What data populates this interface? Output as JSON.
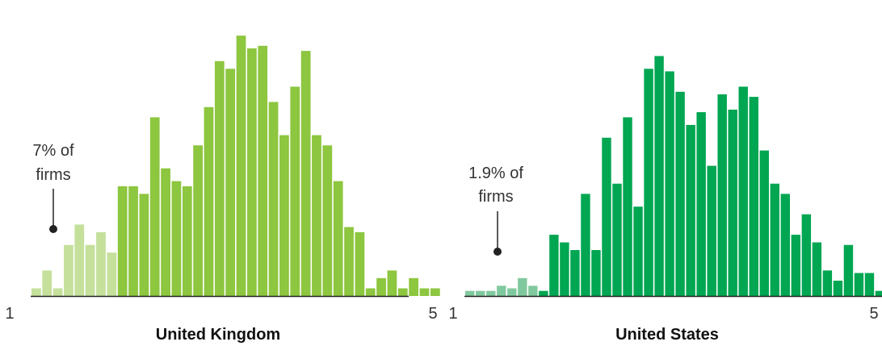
{
  "chart_data": [
    {
      "type": "bar",
      "title": "United Kingdom",
      "x_tick_labels": [
        "1",
        "5"
      ],
      "values": [
        3,
        10,
        3,
        20,
        28,
        20,
        25,
        17,
        43,
        43,
        40,
        70,
        50,
        45,
        43,
        59,
        74,
        92,
        89,
        102,
        97,
        98,
        76,
        63,
        82,
        96,
        63,
        59,
        45,
        27,
        25,
        3,
        7,
        10,
        3,
        7,
        3,
        3
      ],
      "highlight_count": 8,
      "ylim": [
        0,
        115
      ],
      "annotation": {
        "lines": [
          "7% of",
          "firms"
        ]
      },
      "colors": {
        "highlight": "#c5e09b",
        "bar": "#8dc63f",
        "axis": "#222222"
      }
    },
    {
      "type": "bar",
      "title": "United States",
      "x_tick_labels": [
        "1",
        "5"
      ],
      "values": [
        2,
        2,
        2,
        4,
        3,
        7,
        4,
        2,
        24,
        21,
        18,
        40,
        18,
        62,
        44,
        70,
        35,
        89,
        94,
        88,
        80,
        67,
        72,
        51,
        79,
        73,
        82,
        78,
        57,
        44,
        40,
        24,
        32,
        21,
        10,
        6,
        20,
        9,
        9,
        2
      ],
      "highlight_count": 7,
      "ylim": [
        0,
        115
      ],
      "annotation": {
        "lines": [
          "1.9% of",
          "firms"
        ]
      },
      "colors": {
        "highlight": "#80c99e",
        "bar": "#00a651",
        "axis": "#222222"
      }
    }
  ]
}
